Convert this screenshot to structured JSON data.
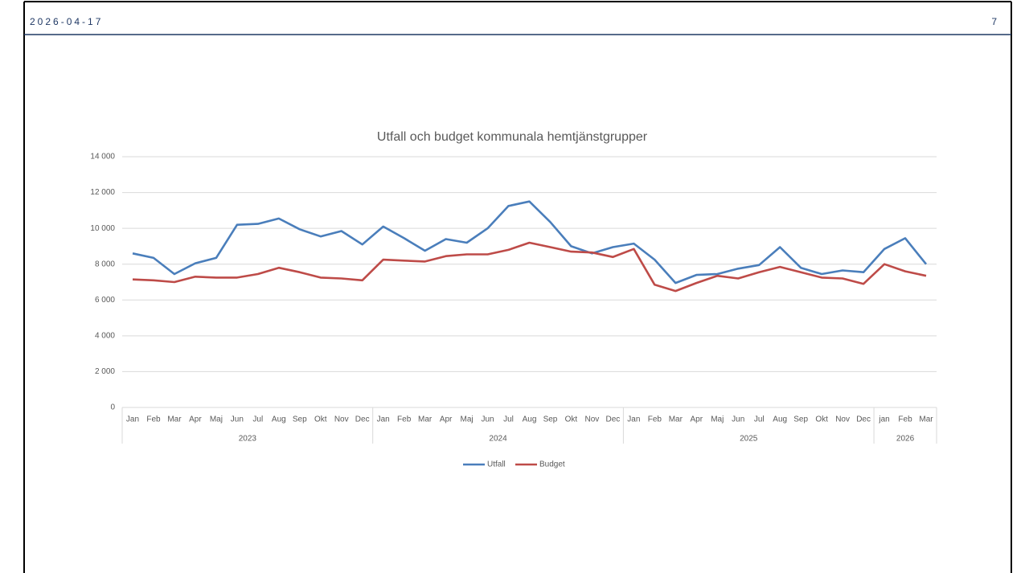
{
  "header": {
    "date": "2026-04-17",
    "page": "7"
  },
  "chart_data": {
    "type": "line",
    "title": "Utfall och budget kommunala hemtjänstgrupper",
    "categories": [
      "Jan",
      "Feb",
      "Mar",
      "Apr",
      "Maj",
      "Jun",
      "Jul",
      "Aug",
      "Sep",
      "Okt",
      "Nov",
      "Dec",
      "Jan",
      "Feb",
      "Mar",
      "Apr",
      "Maj",
      "Jun",
      "Jul",
      "Aug",
      "Sep",
      "Okt",
      "Nov",
      "Dec",
      "Jan",
      "Feb",
      "Mar",
      "Apr",
      "Maj",
      "Jun",
      "Jul",
      "Aug",
      "Sep",
      "Okt",
      "Nov",
      "Dec",
      "jan",
      "Feb",
      "Mar"
    ],
    "category_groups": [
      {
        "label": "2023",
        "size": 12
      },
      {
        "label": "2024",
        "size": 12
      },
      {
        "label": "2025",
        "size": 12
      },
      {
        "label": "2026",
        "size": 3
      }
    ],
    "series": [
      {
        "name": "Utfall",
        "color": "#4a7ebb",
        "values": [
          8600,
          8350,
          7450,
          8050,
          8350,
          10200,
          10250,
          10550,
          9950,
          9550,
          9850,
          9100,
          10100,
          9450,
          8750,
          9400,
          9200,
          10000,
          11250,
          11500,
          10350,
          9000,
          8600,
          8950,
          9150,
          8250,
          6950,
          7400,
          7450,
          7750,
          7950,
          8950,
          7800,
          7450,
          7650,
          7550,
          8850,
          9450,
          8000
        ]
      },
      {
        "name": "Budget",
        "color": "#be4b48",
        "values": [
          7150,
          7100,
          7000,
          7300,
          7250,
          7250,
          7450,
          7800,
          7550,
          7250,
          7200,
          7100,
          8250,
          8200,
          8150,
          8450,
          8550,
          8550,
          8800,
          9200,
          8950,
          8700,
          8650,
          8400,
          8850,
          6850,
          6500,
          6950,
          7350,
          7200,
          7550,
          7850,
          7550,
          7250,
          7200,
          6900,
          8000,
          7600,
          7350
        ]
      }
    ],
    "ylim": [
      0,
      14000
    ],
    "yticks": [
      0,
      {
        "value": 2000,
        "label": "2 000"
      },
      {
        "value": 4000,
        "label": "4 000"
      },
      {
        "value": 6000,
        "label": "6 000"
      },
      {
        "value": 8000,
        "label": "8 000"
      },
      {
        "value": 10000,
        "label": "10 000"
      },
      {
        "value": 12000,
        "label": "12 000"
      },
      {
        "value": 14000,
        "label": "14 000"
      }
    ],
    "grid": true,
    "legend": "bottom"
  }
}
